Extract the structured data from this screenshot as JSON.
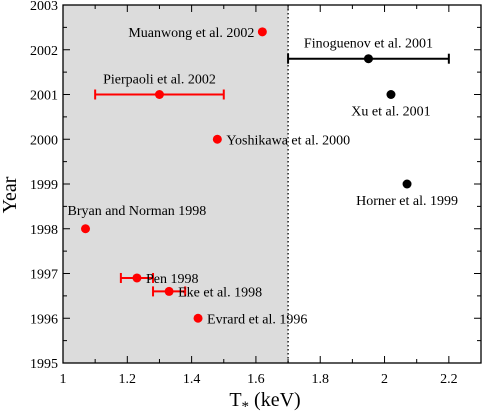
{
  "chart_data": {
    "type": "scatter",
    "xlabel": "T",
    "xlabel_sub": "*",
    "xlabel_unit": " (keV)",
    "ylabel": "Year",
    "xlim": [
      1.0,
      2.3
    ],
    "ylim": [
      1995,
      2003
    ],
    "xticks": [
      "1",
      "1.2",
      "1.4",
      "1.6",
      "1.8",
      "2",
      "2.2"
    ],
    "xtick_values": [
      1.0,
      1.2,
      1.4,
      1.6,
      1.8,
      2.0,
      2.2
    ],
    "yticks": [
      "1995",
      "1996",
      "1997",
      "1998",
      "1999",
      "2000",
      "2001",
      "2002",
      "2003"
    ],
    "ytick_values": [
      1995,
      1996,
      1997,
      1998,
      1999,
      2000,
      2001,
      2002,
      2003
    ],
    "shaded_region": {
      "x": [
        1.0,
        1.7
      ],
      "color": "#dcdcdc"
    },
    "divider_x": 1.7,
    "series": [
      {
        "color": "#ff0000",
        "points": [
          {
            "label": "Muanwong et al. 2002",
            "x": 1.62,
            "y": 2002.4,
            "xerr": null,
            "label_side": "left"
          },
          {
            "label": "Pierpaoli et al. 2002",
            "x": 1.3,
            "y": 2001.0,
            "xerr": [
              1.1,
              1.5
            ],
            "label_side": "above"
          },
          {
            "label": "Yoshikawa et al. 2000",
            "x": 1.48,
            "y": 2000.0,
            "xerr": null,
            "label_side": "right"
          },
          {
            "label": "Bryan and Norman 1998",
            "x": 1.07,
            "y": 1998.0,
            "xerr": null,
            "label_side": "above-right"
          },
          {
            "label": "Eke et al. 1998",
            "x": 1.33,
            "y": 1996.6,
            "xerr": [
              1.28,
              1.38
            ],
            "label_side": "right"
          },
          {
            "label": "Pen 1998",
            "x": 1.23,
            "y": 1996.9,
            "xerr": [
              1.18,
              1.28
            ],
            "label_side": "right"
          },
          {
            "label": "Evrard et al. 1996",
            "x": 1.42,
            "y": 1996.0,
            "xerr": null,
            "label_side": "right"
          }
        ]
      },
      {
        "color": "#000000",
        "points": [
          {
            "label": "Finoguenov et al. 2001",
            "x": 1.95,
            "y": 2001.8,
            "xerr": [
              1.7,
              2.2
            ],
            "label_side": "above"
          },
          {
            "label": "Xu et al. 2001",
            "x": 2.02,
            "y": 2001.0,
            "xerr": null,
            "label_side": "below"
          },
          {
            "label": "Horner et al. 1999",
            "x": 2.07,
            "y": 1999.0,
            "xerr": null,
            "label_side": "below"
          }
        ]
      }
    ]
  }
}
